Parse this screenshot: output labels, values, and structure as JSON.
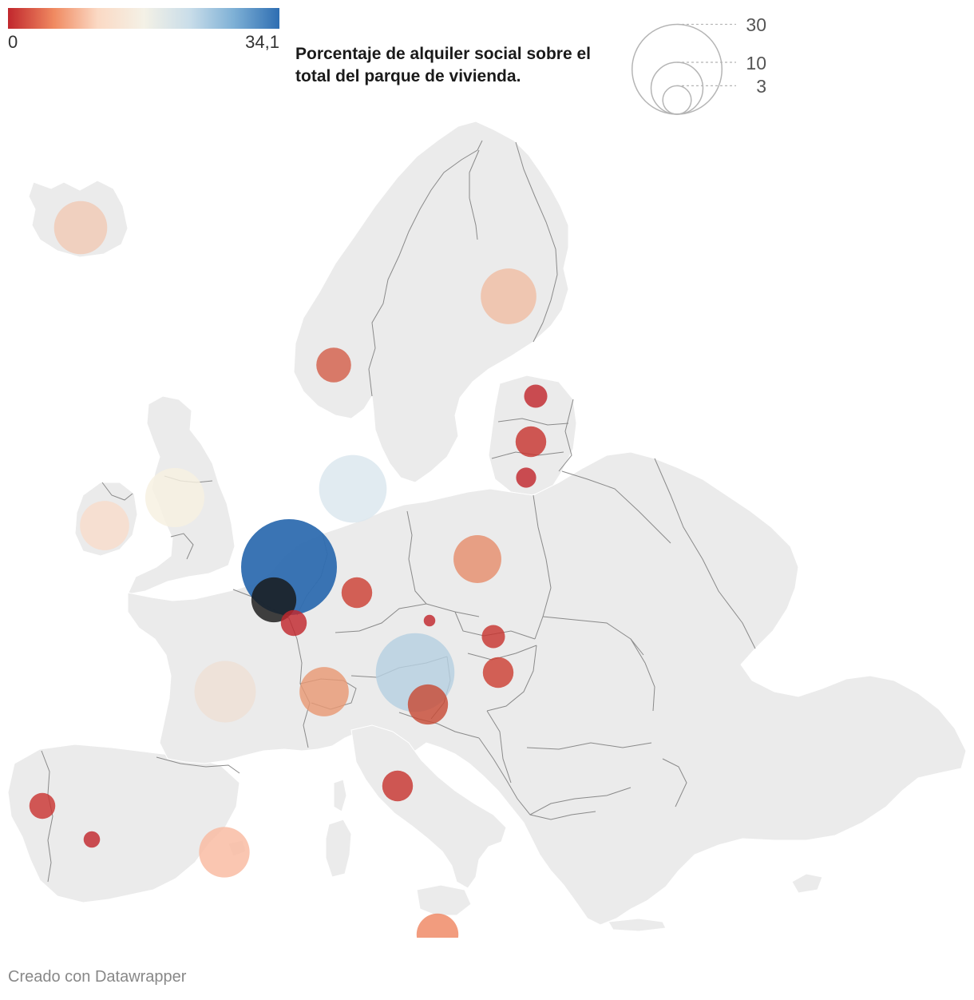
{
  "title": {
    "line1": "Porcentaje de alquiler social sobre el",
    "line2": "total del parque de vivienda."
  },
  "color_legend": {
    "min_label": "0",
    "max_label": "34,1",
    "min_value": 0,
    "max_value": 34.1,
    "stops": [
      "#c1272d",
      "#f08a61",
      "#fbd9c4",
      "#f4f1e6",
      "#c9dde9",
      "#7fb1d6",
      "#2e6eb2"
    ]
  },
  "size_legend": {
    "ticks": [
      {
        "label": "30",
        "value": 30
      },
      {
        "label": "10",
        "value": 10
      },
      {
        "label": "3",
        "value": 3
      }
    ]
  },
  "credit": "Creado con Datawrapper",
  "colors": {
    "land": "#ebebeb",
    "border": "#8a8a8a",
    "credit_text": "#888888"
  },
  "chart_data": {
    "type": "proportional-symbol-map",
    "value_range": [
      0,
      34.1
    ],
    "points": [
      {
        "value": 10.5,
        "color": "#f0c9b4"
      },
      {
        "value": 11.5,
        "color": "#efbda4"
      },
      {
        "value": 4.5,
        "color": "#d35f4a"
      },
      {
        "value": 2.0,
        "color": "#c1272d"
      },
      {
        "value": 3.5,
        "color": "#c7342f"
      },
      {
        "value": 1.5,
        "color": "#c1272d"
      },
      {
        "value": 17.0,
        "color": "#dbe6ee"
      },
      {
        "value": 13.0,
        "color": "#f6f0e0"
      },
      {
        "value": 9.0,
        "color": "#f8dccb"
      },
      {
        "value": 34.1,
        "color": "#2f6db0"
      },
      {
        "value": 7.5,
        "color": "#171717"
      },
      {
        "value": 2.5,
        "color": "#c1272d"
      },
      {
        "value": 3.5,
        "color": "#cc3f33"
      },
      {
        "value": 8.5,
        "color": "#e58e6c"
      },
      {
        "value": 14.0,
        "color": "#eedfd4"
      },
      {
        "value": 9.0,
        "color": "#e89874"
      },
      {
        "value": 0.5,
        "color": "#c1272d"
      },
      {
        "value": 2.0,
        "color": "#c7342f"
      },
      {
        "value": 3.5,
        "color": "#cc3f33"
      },
      {
        "value": 23.0,
        "color": "#b6cfe0"
      },
      {
        "value": 6.0,
        "color": "#c74a36"
      },
      {
        "value": 3.5,
        "color": "#c7342f"
      },
      {
        "value": 2.5,
        "color": "#c93532"
      },
      {
        "value": 1.0,
        "color": "#c1272d"
      },
      {
        "value": 9.5,
        "color": "#f9baa0"
      },
      {
        "value": 6.5,
        "color": "#ef8662"
      }
    ]
  }
}
